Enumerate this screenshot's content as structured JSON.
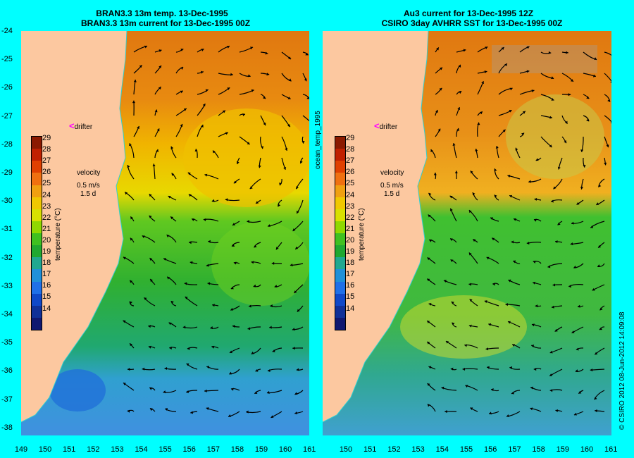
{
  "left_panel": {
    "title_line1": "BRAN3.3 13m temp. 13-Dec-1995",
    "title_line2": "BRAN3.3 13m current for 13-Dec-1995 00Z"
  },
  "right_panel": {
    "title_line1": "Au3 current for 13-Dec-1995 12Z",
    "title_line2": "CSIRO 3day AVHRR SST for 13-Dec-1995 00Z"
  },
  "y_axis_ticks": [
    "-24",
    "-25",
    "-26",
    "-27",
    "-28",
    "-29",
    "-30",
    "-31",
    "-32",
    "-33",
    "-34",
    "-35",
    "-36",
    "-37",
    "-38"
  ],
  "x_axis_ticks_left": [
    "149",
    "150",
    "151",
    "152",
    "153",
    "154",
    "155",
    "156",
    "157",
    "158",
    "159",
    "160",
    "161"
  ],
  "x_axis_ticks_right": [
    "150",
    "151",
    "152",
    "153",
    "154",
    "155",
    "156",
    "157",
    "158",
    "159",
    "160",
    "161"
  ],
  "colorbar": {
    "title": "temperature (°C)",
    "labels": [
      "29",
      "28",
      "27",
      "26",
      "25",
      "24",
      "23",
      "22",
      "21",
      "20",
      "19",
      "18",
      "17",
      "16",
      "15",
      "14"
    ],
    "colors": [
      "#8b1a00",
      "#c02000",
      "#e04000",
      "#f07010",
      "#f0a010",
      "#f0c800",
      "#d8e000",
      "#90d800",
      "#40c020",
      "#20a830",
      "#20a890",
      "#2090d8",
      "#2070e8",
      "#1048c8",
      "#103098",
      "#101870"
    ]
  },
  "legend": {
    "velocity_label": "velocity",
    "speed_label": "0.5 m/s",
    "time_label": "1.5 d"
  },
  "drifter_label": "drifter",
  "side_label": "ocean_temp_1995",
  "copyright": "© CSIRO 2012  08-Jun-2012 14:09:08",
  "colors": {
    "background": "#00ffff",
    "land": "#fcc8a0",
    "coast_line": "#30d0d0",
    "drifter_marker": "#ff00ff"
  }
}
